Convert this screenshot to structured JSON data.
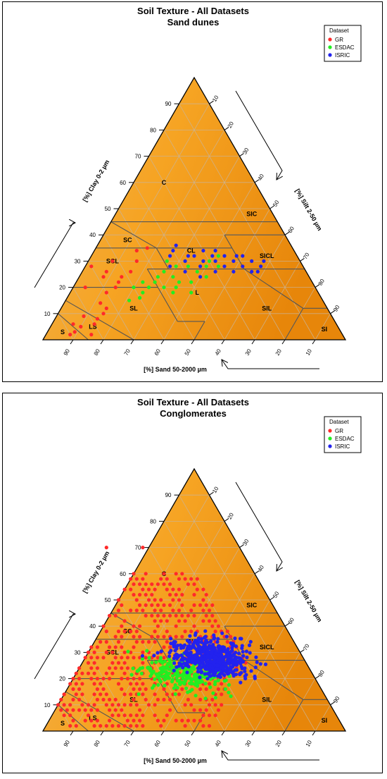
{
  "chart_data": [
    {
      "type": "scatter",
      "subtype": "ternary-soil-texture",
      "title": "Soil Texture - All Datasets",
      "subtitle": "Sand dunes",
      "axis_labels": {
        "clay": "[%] Clay 0-2 µm",
        "silt": "[%] Silt 2-50 µm",
        "sand": "[%] Sand 50-2000 µm"
      },
      "ticks": [
        "10",
        "20",
        "30",
        "40",
        "50",
        "60",
        "70",
        "80",
        "90"
      ],
      "legend": {
        "title": "Dataset",
        "position": "top-right",
        "entries": [
          "GR",
          "ESDAC",
          "ISRIC"
        ]
      },
      "regions": [
        "C",
        "SIC",
        "SC",
        "CL",
        "SICL",
        "SCL",
        "L",
        "SL",
        "SIL",
        "LS",
        "S",
        "SI"
      ],
      "series": [
        {
          "name": "GR",
          "color": "#ff2a2a",
          "points": [
            {
              "sand": 88,
              "clay": 3
            },
            {
              "sand": 85,
              "clay": 5
            },
            {
              "sand": 83,
              "clay": 2
            },
            {
              "sand": 90,
              "clay": 2
            },
            {
              "sand": 87,
              "clay": 6
            },
            {
              "sand": 80,
              "clay": 6
            },
            {
              "sand": 78,
              "clay": 8
            },
            {
              "sand": 75,
              "clay": 10
            },
            {
              "sand": 82,
              "clay": 9
            },
            {
              "sand": 73,
              "clay": 12
            },
            {
              "sand": 74,
              "clay": 14
            },
            {
              "sand": 70,
              "clay": 18
            },
            {
              "sand": 66,
              "clay": 20
            },
            {
              "sand": 64,
              "clay": 22
            },
            {
              "sand": 62,
              "clay": 24
            },
            {
              "sand": 68,
              "clay": 24
            },
            {
              "sand": 58,
              "clay": 26
            },
            {
              "sand": 62,
              "clay": 30
            },
            {
              "sand": 52,
              "clay": 34
            },
            {
              "sand": 48,
              "clay": 35
            },
            {
              "sand": 54,
              "clay": 30
            },
            {
              "sand": 70,
              "clay": 28
            },
            {
              "sand": 66,
              "clay": 26
            },
            {
              "sand": 76,
              "clay": 20
            }
          ]
        },
        {
          "name": "ESDAC",
          "color": "#22ee22",
          "points": [
            {
              "sand": 64,
              "clay": 15
            },
            {
              "sand": 60,
              "clay": 16
            },
            {
              "sand": 58,
              "clay": 18
            },
            {
              "sand": 55,
              "clay": 20
            },
            {
              "sand": 52,
              "clay": 22
            },
            {
              "sand": 50,
              "clay": 24
            },
            {
              "sand": 47,
              "clay": 26
            },
            {
              "sand": 45,
              "clay": 24
            },
            {
              "sand": 44,
              "clay": 30
            },
            {
              "sand": 42,
              "clay": 28
            },
            {
              "sand": 48,
              "clay": 18
            },
            {
              "sand": 46,
              "clay": 20
            },
            {
              "sand": 40,
              "clay": 22
            },
            {
              "sand": 38,
              "clay": 28
            },
            {
              "sand": 36,
              "clay": 26
            },
            {
              "sand": 34,
              "clay": 24
            },
            {
              "sand": 30,
              "clay": 30
            },
            {
              "sand": 28,
              "clay": 28
            },
            {
              "sand": 26,
              "clay": 32
            },
            {
              "sand": 60,
              "clay": 20
            },
            {
              "sand": 56,
              "clay": 22
            },
            {
              "sand": 44,
              "clay": 22
            },
            {
              "sand": 42,
              "clay": 18
            },
            {
              "sand": 32,
              "clay": 28
            },
            {
              "sand": 50,
              "clay": 20
            }
          ]
        },
        {
          "name": "ISRIC",
          "color": "#2222ee",
          "points": [
            {
              "sand": 42,
              "clay": 32
            },
            {
              "sand": 40,
              "clay": 34
            },
            {
              "sand": 38,
              "clay": 30
            },
            {
              "sand": 36,
              "clay": 32
            },
            {
              "sand": 34,
              "clay": 28
            },
            {
              "sand": 32,
              "clay": 30
            },
            {
              "sand": 30,
              "clay": 34
            },
            {
              "sand": 28,
              "clay": 30
            },
            {
              "sand": 26,
              "clay": 28
            },
            {
              "sand": 24,
              "clay": 32
            },
            {
              "sand": 22,
              "clay": 30
            },
            {
              "sand": 20,
              "clay": 28
            },
            {
              "sand": 18,
              "clay": 32
            },
            {
              "sand": 16,
              "clay": 30
            },
            {
              "sand": 14,
              "clay": 28
            },
            {
              "sand": 12,
              "clay": 30
            },
            {
              "sand": 40,
              "clay": 26
            },
            {
              "sand": 36,
              "clay": 24
            },
            {
              "sand": 30,
              "clay": 26
            },
            {
              "sand": 24,
              "clay": 26
            },
            {
              "sand": 18,
              "clay": 26
            },
            {
              "sand": 44,
              "clay": 28
            },
            {
              "sand": 38,
              "clay": 36
            },
            {
              "sand": 26,
              "clay": 34
            },
            {
              "sand": 20,
              "clay": 32
            },
            {
              "sand": 34,
              "clay": 32
            },
            {
              "sand": 16,
              "clay": 26
            },
            {
              "sand": 28,
              "clay": 32
            }
          ]
        }
      ]
    },
    {
      "type": "scatter",
      "subtype": "ternary-soil-texture",
      "title": "Soil Texture - All Datasets",
      "subtitle": "Conglomerates",
      "axis_labels": {
        "clay": "[%] Clay 0-2 µm",
        "silt": "[%] Silt 2-50 µm",
        "sand": "[%] Sand 50-2000 µm"
      },
      "ticks": [
        "10",
        "20",
        "30",
        "40",
        "50",
        "60",
        "70",
        "80",
        "90"
      ],
      "legend": {
        "title": "Dataset",
        "position": "top-right",
        "entries": [
          "GR",
          "ESDAC",
          "ISRIC"
        ]
      },
      "regions": [
        "C",
        "SIC",
        "SC",
        "CL",
        "SICL",
        "SCL",
        "L",
        "SL",
        "SIL",
        "LS",
        "S",
        "SI"
      ],
      "series": [
        {
          "name": "GR",
          "color": "#ff2a2a",
          "grid": {
            "clay_min": 2,
            "clay_max": 60,
            "sand_min": 20,
            "sand_max": 90,
            "step": 2,
            "density": 0.62,
            "seed": 1
          },
          "points": [
            {
              "sand": 32,
              "clay": 70
            },
            {
              "sand": 44,
              "clay": 70
            },
            {
              "sand": 70,
              "clay": 4
            },
            {
              "sand": 80,
              "clay": 2
            }
          ]
        },
        {
          "name": "ESDAC",
          "color": "#22ee22",
          "cloud": {
            "sand_center": 42,
            "clay_center": 22,
            "sand_spread": 14,
            "clay_spread": 6,
            "count": 260,
            "seed": 2
          }
        },
        {
          "name": "ISRIC",
          "color": "#2222ee",
          "cloud": {
            "sand_center": 30,
            "clay_center": 28,
            "sand_spread": 12,
            "clay_spread": 7,
            "count": 520,
            "seed": 3
          }
        }
      ]
    }
  ]
}
